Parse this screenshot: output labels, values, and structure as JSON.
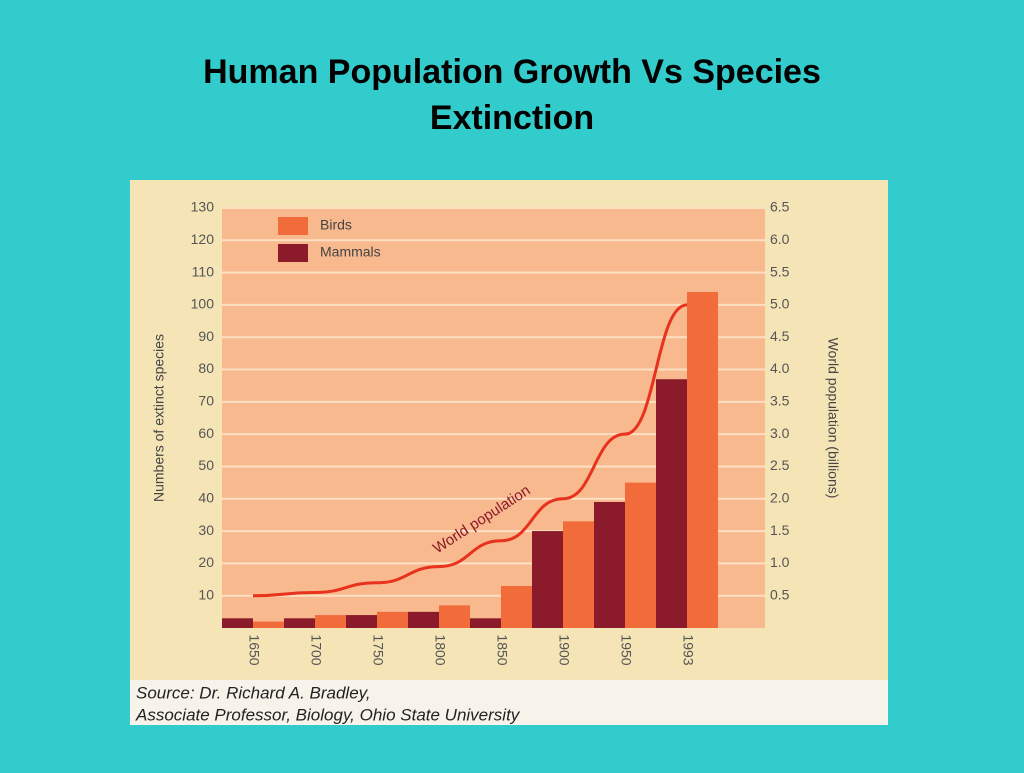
{
  "chart_data": {
    "type": "bar",
    "title": "Human Population Growth Vs Species Extinction",
    "y_label": "Numbers of extinct species",
    "y2_label": "World population (billions)",
    "categories": [
      "1650",
      "1700",
      "1750",
      "1800",
      "1850",
      "1900",
      "1950",
      "1993"
    ],
    "series": [
      {
        "name": "Birds",
        "color": "#f26b3a",
        "values": [
          2,
          4,
          5,
          7,
          13,
          33,
          45,
          104
        ]
      },
      {
        "name": "Mammals",
        "color": "#8b1a2a",
        "values": [
          3,
          3,
          4,
          5,
          3,
          30,
          39,
          77
        ]
      },
      {
        "name": "World population",
        "type": "line",
        "axis": "y2",
        "color": "#e8321e",
        "values": [
          0.5,
          0.55,
          0.7,
          0.95,
          1.35,
          2.0,
          3.0,
          5.0
        ]
      }
    ],
    "ylim": [
      0,
      130
    ],
    "yticks": [
      10,
      20,
      30,
      40,
      50,
      60,
      70,
      80,
      90,
      100,
      110,
      120,
      130
    ],
    "y2lim": [
      0,
      6.5
    ],
    "y2ticks": [
      0.5,
      {
        "value": 1,
        "label": "1.0"
      },
      1.5,
      {
        "value": 2,
        "label": "2.0"
      },
      2.5,
      {
        "value": 3,
        "label": "3.0"
      },
      3.5,
      {
        "value": 4,
        "label": "4.0"
      },
      4.5,
      {
        "value": 5,
        "label": "5.0"
      },
      5.5,
      {
        "value": 6,
        "label": "6.0"
      },
      6.5
    ],
    "grid": true,
    "legend": "top-left",
    "source": [
      "Source: Dr. Richard A. Bradley,",
      "Associate Professor, Biology, Ohio State University"
    ]
  }
}
